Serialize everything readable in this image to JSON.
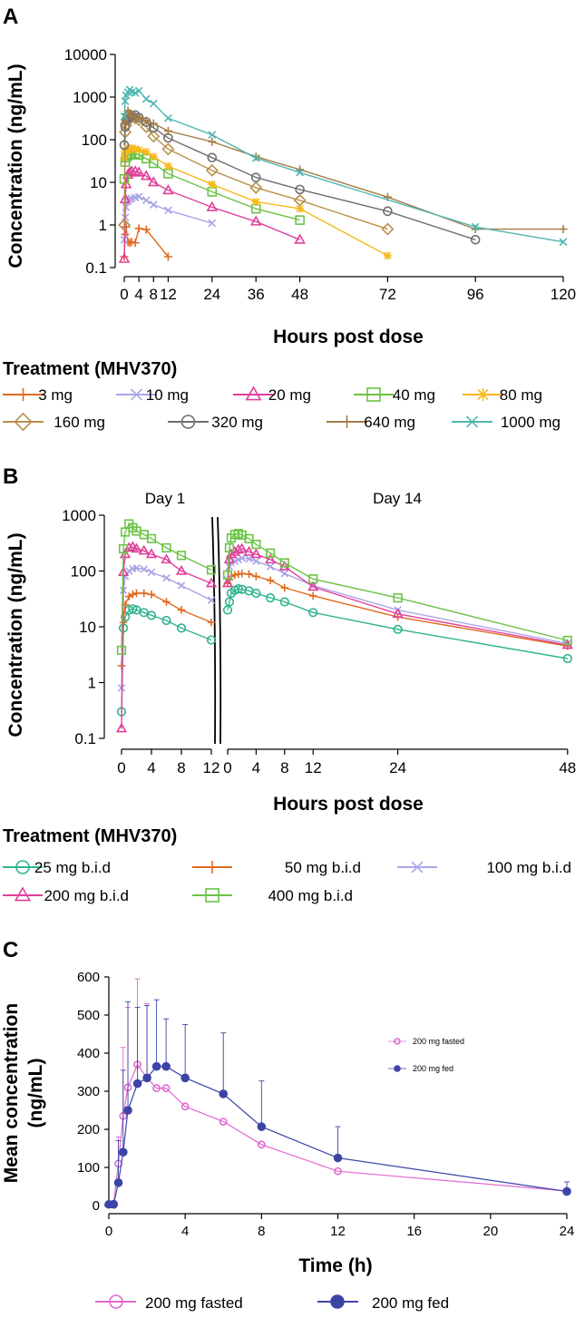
{
  "colors": {
    "c3": "#e06a1f",
    "c10": "#a9a5e6",
    "c20": "#e0409a",
    "c40": "#6bc346",
    "c80": "#f7b81c",
    "c160": "#b8904a",
    "c320": "#6f6f6f",
    "c640": "#a57c46",
    "c1000": "#4fb6b0",
    "c25": "#2fb38f",
    "c50": "#e06a1f",
    "c100": "#a9a5e6",
    "c200": "#e0409a",
    "c400": "#6bc346",
    "fasted": "#e16ad0",
    "fed": "#3c44a5"
  },
  "chart_data": [
    {
      "panel": "A",
      "type": "line",
      "scale": "log",
      "xlabel": "Hours post dose",
      "ylabel": "Concentration (ng/mL)",
      "xlim": [
        -1,
        121
      ],
      "ylim": [
        0.1,
        10000
      ],
      "x_ticks": [
        0,
        4,
        8,
        12,
        24,
        36,
        48,
        72,
        96,
        120
      ],
      "x_tick_labels": [
        "0",
        "4",
        "8",
        "12",
        "24",
        "36",
        "48",
        "72",
        "96",
        "120"
      ],
      "y_ticks": [
        0.1,
        1,
        10,
        100,
        1000,
        10000
      ],
      "y_tick_labels": [
        "0.1",
        "1",
        "10",
        "100",
        "1000",
        "10000"
      ],
      "legend_title": "Treatment (MHV370)",
      "series": [
        {
          "name": "3 mg",
          "color": "c3",
          "marker": "plus",
          "x": [
            0,
            0.25,
            0.5,
            1,
            1.5,
            2,
            3,
            4,
            6,
            12
          ],
          "values": [
            0.18,
            0.6,
            0.9,
            0.4,
            0.38,
            0.4,
            0.38,
            0.83,
            0.78,
            0.18
          ]
        },
        {
          "name": "10 mg",
          "color": "c10",
          "marker": "x",
          "x": [
            0,
            0.25,
            0.5,
            1,
            1.5,
            2,
            3,
            4,
            6,
            8,
            12,
            24
          ],
          "values": [
            0.45,
            1.5,
            2.6,
            3.6,
            4.0,
            4.2,
            4.4,
            4.6,
            3.8,
            3.0,
            2.2,
            1.1
          ]
        },
        {
          "name": "20 mg",
          "color": "c20",
          "marker": "triangle",
          "x": [
            0,
            0.25,
            0.5,
            1,
            1.5,
            2,
            3,
            4,
            6,
            8,
            12,
            24,
            36,
            48
          ],
          "values": [
            0.16,
            4.0,
            9.0,
            15,
            17,
            18,
            18,
            17,
            14,
            10,
            6.5,
            2.6,
            1.2,
            0.45
          ]
        },
        {
          "name": "40 mg",
          "color": "c40",
          "marker": "square",
          "x": [
            0,
            0.25,
            0.5,
            1,
            1.5,
            2,
            3,
            4,
            6,
            8,
            12,
            24,
            36,
            48
          ],
          "values": [
            12,
            30,
            38,
            42,
            45,
            46,
            47,
            44,
            36,
            28,
            16,
            6.0,
            2.4,
            1.3
          ]
        },
        {
          "name": "80 mg",
          "color": "c80",
          "marker": "star",
          "x": [
            0,
            0.25,
            0.5,
            1,
            1.5,
            2,
            3,
            4,
            6,
            8,
            12,
            24,
            36,
            48,
            72
          ],
          "values": [
            38,
            52,
            55,
            58,
            62,
            63,
            60,
            58,
            52,
            40,
            24,
            9,
            3.5,
            2.4,
            0.19
          ]
        },
        {
          "name": "160 mg",
          "color": "c160",
          "marker": "diamond",
          "x": [
            0,
            0.25,
            0.5,
            1,
            1.5,
            2,
            3,
            4,
            6,
            8,
            12,
            24,
            36,
            48,
            72
          ],
          "values": [
            1.0,
            150,
            220,
            290,
            330,
            340,
            320,
            290,
            200,
            120,
            60,
            19,
            7.5,
            3.8,
            0.8
          ]
        },
        {
          "name": "320 mg",
          "color": "c320",
          "marker": "circle",
          "x": [
            0,
            0.25,
            0.5,
            1,
            1.5,
            2,
            3,
            4,
            6,
            8,
            12,
            24,
            36,
            48,
            72,
            96
          ],
          "values": [
            75,
            200,
            290,
            310,
            340,
            360,
            380,
            330,
            260,
            190,
            110,
            38,
            13,
            6.8,
            2.1,
            0.45
          ]
        },
        {
          "name": "640 mg",
          "color": "c640",
          "marker": "plus",
          "x": [
            0,
            0.25,
            0.5,
            1,
            1.5,
            2,
            3,
            4,
            6,
            8,
            12,
            24,
            36,
            48,
            72,
            96,
            120
          ],
          "values": [
            240,
            300,
            400,
            480,
            420,
            360,
            330,
            310,
            280,
            240,
            160,
            90,
            40,
            20,
            4.5,
            0.8,
            0.8
          ]
        },
        {
          "name": "1000 mg",
          "color": "c1000",
          "marker": "x",
          "x": [
            0,
            0.25,
            0.5,
            1,
            1.5,
            2,
            3,
            4,
            6,
            8,
            12,
            24,
            36,
            48,
            96,
            120
          ],
          "values": [
            350,
            800,
            1100,
            1300,
            1500,
            1300,
            1250,
            1400,
            900,
            700,
            320,
            130,
            37,
            17,
            0.9,
            0.4
          ]
        }
      ]
    },
    {
      "panel": "B",
      "type": "line",
      "scale": "log",
      "xlabel": "Hours post dose",
      "ylabel": "Concentration (ng/mL)",
      "day_labels": [
        "Day 1",
        "Day 14"
      ],
      "ylim": [
        0.1,
        1000
      ],
      "x_tick_labels_day1": [
        "0",
        "4",
        "8",
        "12"
      ],
      "x_tick_labels_day14": [
        "0",
        "4",
        "8",
        "12",
        "24",
        "48"
      ],
      "y_tick_labels": [
        "0.1",
        "1",
        "10",
        "100",
        "1000"
      ],
      "legend_title": "Treatment (MHV370)",
      "day1_x": [
        0,
        0.25,
        0.5,
        1,
        1.5,
        2,
        3,
        4,
        6,
        8,
        12
      ],
      "day14_x": [
        0,
        0.25,
        0.5,
        1,
        1.5,
        2,
        3,
        4,
        6,
        8,
        12,
        24,
        48
      ],
      "series": [
        {
          "name": "25 mg b.i.d",
          "color": "c25",
          "marker": "circle",
          "day1": [
            0.3,
            9.5,
            15,
            20,
            21,
            20,
            18,
            16,
            13,
            9.5,
            5.8
          ],
          "day14": [
            20,
            28,
            40,
            45,
            48,
            47,
            44,
            40,
            33,
            28,
            18,
            9,
            2.7
          ]
        },
        {
          "name": "50 mg b.i.d",
          "color": "c50",
          "marker": "plus",
          "day1": [
            2,
            12,
            25,
            35,
            38,
            40,
            40,
            38,
            28,
            20,
            12
          ],
          "day14": [
            60,
            70,
            80,
            85,
            88,
            90,
            88,
            80,
            68,
            50,
            36,
            15,
            4.5
          ]
        },
        {
          "name": "100 mg b.i.d",
          "color": "c100",
          "marker": "x",
          "day1": [
            0.8,
            45,
            80,
            100,
            110,
            112,
            108,
            95,
            75,
            55,
            30
          ],
          "day14": [
            70,
            120,
            140,
            150,
            160,
            170,
            165,
            150,
            120,
            90,
            55,
            20,
            5
          ]
        },
        {
          "name": "200 mg b.i.d",
          "color": "c200",
          "marker": "triangle",
          "day1": [
            0.15,
            95,
            200,
            260,
            270,
            250,
            230,
            200,
            160,
            100,
            60
          ],
          "day14": [
            60,
            160,
            200,
            220,
            240,
            250,
            220,
            200,
            160,
            120,
            52,
            17,
            4.7
          ]
        },
        {
          "name": "400 mg b.i.d",
          "color": "c400",
          "marker": "square",
          "day1": [
            3.8,
            250,
            500,
            700,
            600,
            520,
            450,
            380,
            260,
            190,
            105
          ],
          "day14": [
            85,
            260,
            390,
            450,
            470,
            440,
            380,
            300,
            210,
            140,
            72,
            33,
            5.7
          ]
        }
      ]
    },
    {
      "panel": "C",
      "type": "line",
      "scale": "linear",
      "xlabel": "Time (h)",
      "ylabel_line1": "Mean concentration",
      "ylabel_line2": "(ng/mL)",
      "xlim": [
        0,
        24
      ],
      "ylim": [
        0,
        600
      ],
      "x_ticks": [
        0,
        4,
        8,
        12,
        16,
        20,
        24
      ],
      "x_tick_labels": [
        "0",
        "4",
        "8",
        "12",
        "16",
        "20",
        "24"
      ],
      "y_ticks": [
        0,
        100,
        200,
        300,
        400,
        500,
        600
      ],
      "y_tick_labels": [
        "0",
        "100",
        "200",
        "300",
        "400",
        "500",
        "600"
      ],
      "inset_legend": [
        "200 mg fasted",
        "200 mg fed"
      ],
      "series": [
        {
          "name": "200 mg fasted",
          "color": "fasted",
          "filled": false,
          "x": [
            0,
            0.25,
            0.5,
            0.75,
            1,
            1.5,
            2,
            2.5,
            3,
            4,
            6,
            8,
            12,
            24
          ],
          "values": [
            3,
            5,
            110,
            235,
            310,
            370,
            335,
            308,
            308,
            260,
            220,
            160,
            90,
            38
          ],
          "err": [
            0,
            0,
            70,
            180,
            210,
            225,
            195,
            0,
            0,
            0,
            0,
            0,
            0,
            0
          ]
        },
        {
          "name": "200 mg fed",
          "color": "fed",
          "filled": true,
          "x": [
            0,
            0.25,
            0.5,
            0.75,
            1,
            1.5,
            2,
            2.5,
            3,
            4,
            6,
            8,
            12,
            24
          ],
          "values": [
            3,
            3,
            60,
            140,
            250,
            320,
            335,
            365,
            365,
            335,
            293,
            207,
            125,
            37
          ],
          "err": [
            0,
            0,
            110,
            215,
            285,
            200,
            190,
            175,
            125,
            140,
            160,
            120,
            82,
            25
          ]
        }
      ]
    }
  ]
}
